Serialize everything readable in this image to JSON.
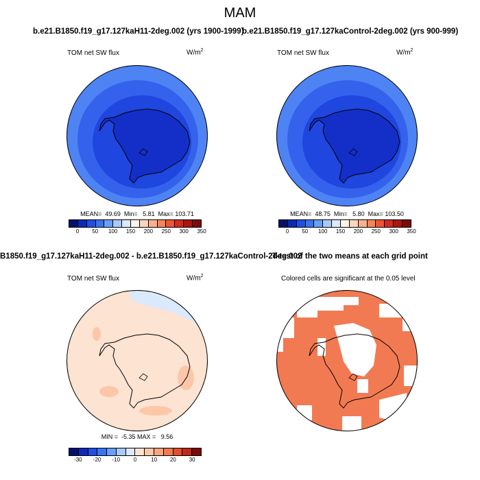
{
  "figure": {
    "season": "MAM",
    "top_left_caption": "b.e21.B1850.f19_g17.127kaH11-2deg.002 (yrs 1900-1999)",
    "top_right_caption": "b.e21.B1850.f19_g17.127kaControl-2deg.002 (yrs 900-999)",
    "bottom_left_caption": "B1850.f19_g17.127kaH11-2deg.002 - b.e21.B1850.f19_g17.127kaControl-2deg.002",
    "bottom_right_caption": "T-test of the two means at each grid point"
  },
  "panels": {
    "top_left": {
      "variable": "TOM net SW flux",
      "units": "W/m",
      "units_sup": "2",
      "stats": "MEAN=  49.69  Min=   5.81  Max= 103.71"
    },
    "top_right": {
      "variable": "TOM net SW flux",
      "units": "W/m",
      "units_sup": "2",
      "stats": "MEAN=  48.75  Min=   5.80  Max= 103.50"
    },
    "bottom_left": {
      "variable": "TOM net SW flux",
      "units": "W/m",
      "units_sup": "2",
      "stats": "MIN =  -5.35 MAX =   9.56"
    },
    "bottom_right": {
      "note": "Colored cells are significant at the 0.05 level"
    }
  },
  "colorbars": {
    "absolute": {
      "labels": [
        "0",
        "50",
        "100",
        "150",
        "200",
        "250",
        "300",
        "350"
      ],
      "colors": [
        "#05106e",
        "#0b2ab8",
        "#1f4fe6",
        "#3a74f2",
        "#6a9ff7",
        "#a9c9fb",
        "#dbe9fd",
        "#fff3e8",
        "#fdd6bd",
        "#fbb08c",
        "#f7845a",
        "#ee5533",
        "#d22a1c",
        "#ae1511",
        "#7e0a09"
      ]
    },
    "difference": {
      "labels": [
        "-30",
        "-20",
        "-10",
        "0",
        "10",
        "20",
        "30"
      ],
      "colors": [
        "#05106e",
        "#0b2ab8",
        "#1f4fe6",
        "#3a74f2",
        "#6a9ff7",
        "#a9c9fb",
        "#dbe9fd",
        "#fde3d2",
        "#fbc7a8",
        "#f7a57c",
        "#f27a52",
        "#e04e2d",
        "#c22a18",
        "#7e0a09"
      ]
    }
  },
  "map_colors": {
    "sw_outer": "#4e83f4",
    "sw_mid": "#3462ec",
    "sw_inner": "#1f46de",
    "sw_polar": "#142fc8",
    "diff_base": "#fde3d2",
    "diff_neg": "#dbe9fd",
    "diff_pos": "#fbc7a8",
    "significant": "#f27a52"
  }
}
